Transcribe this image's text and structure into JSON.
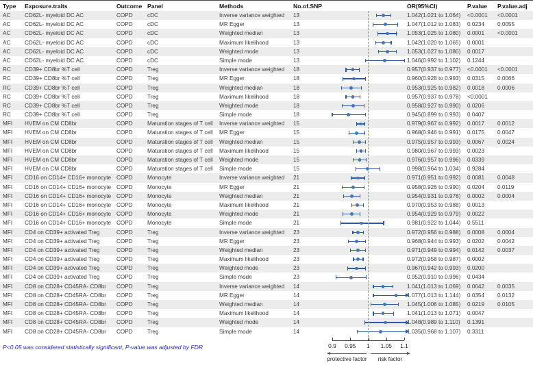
{
  "chart_data": {
    "type": "scatter",
    "subtype": "forest-plot",
    "title": "",
    "columns": {
      "type": "Type",
      "exposure": "Exposure.traits",
      "outcome": "Outcome",
      "panel": "Panel",
      "methods": "Methods",
      "snp": "No.of.SNP",
      "or": "OR(95%CI)",
      "p": "P.value",
      "padj": "P.value.adj"
    },
    "axis": {
      "min": 0.9,
      "max": 1.1,
      "ref": 1,
      "ticks": [
        "0.9",
        "0.95",
        "1",
        "1.05",
        "1.1"
      ],
      "left_label": "protective factor",
      "right_label": "risk factor"
    },
    "footnote": "P<0.05 was considered statistically significant, P-value was adjusted by FDR",
    "colors": {
      "ci_line": "#2d5a9e",
      "marker": "#4677b8",
      "ref_line": "#ef6a5f",
      "stripe": "#ececec",
      "footnote_blue": "#2424cc"
    },
    "rows": [
      {
        "type": "AC",
        "exposure": "CD62L- myeloid DC AC",
        "outcome": "COPD",
        "panel": "cDC",
        "method": "Inverse variance weighted",
        "snp": "13",
        "or": 1.042,
        "lo": 1.021,
        "hi": 1.064,
        "or_ci": "1.042(1.021 to 1.064)",
        "p": "<0.0001",
        "p_adj": "<0.0001"
      },
      {
        "type": "AC",
        "exposure": "CD62L- myeloid DC AC",
        "outcome": "COPD",
        "panel": "cDC",
        "method": "MR Egger",
        "snp": "13",
        "or": 1.047,
        "lo": 1.012,
        "hi": 1.083,
        "or_ci": "1.047(1.012 to 1.083)",
        "p": "0.0234",
        "p_adj": "0.0055"
      },
      {
        "type": "AC",
        "exposure": "CD62L- myeloid DC AC",
        "outcome": "COPD",
        "panel": "cDC",
        "method": "Weighted median",
        "snp": "13",
        "or": 1.053,
        "lo": 1.025,
        "hi": 1.08,
        "or_ci": "1.053(1.025 to 1.080)",
        "p": "0.0001",
        "p_adj": "<0.0001"
      },
      {
        "type": "AC",
        "exposure": "CD62L- myeloid DC AC",
        "outcome": "COPD",
        "panel": "cDC",
        "method": "Maximum likelihood",
        "snp": "13",
        "or": 1.042,
        "lo": 1.02,
        "hi": 1.065,
        "or_ci": "1.042(1.020 to 1.065)",
        "p": "0.0001",
        "p_adj": ""
      },
      {
        "type": "AC",
        "exposure": "CD62L- myeloid DC AC",
        "outcome": "COPD",
        "panel": "cDC",
        "method": "Weighted mode",
        "snp": "13",
        "or": 1.053,
        "lo": 1.027,
        "hi": 1.08,
        "or_ci": "1.053(1.027 to 1.080)",
        "p": "0.0017",
        "p_adj": ""
      },
      {
        "type": "AC",
        "exposure": "CD62L- myeloid DC AC",
        "outcome": "COPD",
        "panel": "cDC",
        "method": "Simple mode",
        "snp": "13",
        "or": 1.046,
        "lo": 0.992,
        "hi": 1.102,
        "or_ci": "1.046(0.992 to 1.102)",
        "p": "0.1244",
        "p_adj": ""
      },
      {
        "type": "RC",
        "exposure": "CD39+ CD8br %T cell",
        "outcome": "COPD",
        "panel": "Treg",
        "method": "Inverse variance weighted",
        "snp": "18",
        "or": 0.957,
        "lo": 0.937,
        "hi": 0.977,
        "or_ci": "0.957(0.937 to 0.977)",
        "p": "<0.0001",
        "p_adj": "<0.0001"
      },
      {
        "type": "RC",
        "exposure": "CD39+ CD8br %T cell",
        "outcome": "COPD",
        "panel": "Treg",
        "method": "MR Egger",
        "snp": "18",
        "or": 0.96,
        "lo": 0.928,
        "hi": 0.993,
        "or_ci": "0.960(0.928 to 0.993)",
        "p": "0.0315",
        "p_adj": "0.0066"
      },
      {
        "type": "RC",
        "exposure": "CD39+ CD8br %T cell",
        "outcome": "COPD",
        "panel": "Treg",
        "method": "Weighted median",
        "snp": "18",
        "or": 0.953,
        "lo": 0.925,
        "hi": 0.982,
        "or_ci": "0.953(0.925 to 0.982)",
        "p": "0.0018",
        "p_adj": "0.0006"
      },
      {
        "type": "RC",
        "exposure": "CD39+ CD8br %T cell",
        "outcome": "COPD",
        "panel": "Treg",
        "method": "Maximum likelihood",
        "snp": "18",
        "or": 0.957,
        "lo": 0.937,
        "hi": 0.978,
        "or_ci": "0.957(0.937 to 0.978)",
        "p": "<0.0001",
        "p_adj": ""
      },
      {
        "type": "RC",
        "exposure": "CD39+ CD8br %T cell",
        "outcome": "COPD",
        "panel": "Treg",
        "method": "Weighted mode",
        "snp": "18",
        "or": 0.958,
        "lo": 0.927,
        "hi": 0.99,
        "or_ci": "0.958(0.927 to 0.990)",
        "p": "0.0206",
        "p_adj": ""
      },
      {
        "type": "RC",
        "exposure": "CD39+ CD8br %T cell",
        "outcome": "COPD",
        "panel": "Treg",
        "method": "Simple mode",
        "snp": "18",
        "or": 0.945,
        "lo": 0.899,
        "hi": 0.993,
        "or_ci": "0.945(0.899 to 0.993)",
        "p": "0.0407",
        "p_adj": ""
      },
      {
        "type": "MFI",
        "exposure": "HVEM on CM CD8br",
        "outcome": "COPD",
        "panel": "Maturation stages of T cell",
        "method": "Inverse variance weighted",
        "snp": "15",
        "or": 0.979,
        "lo": 0.967,
        "hi": 0.992,
        "or_ci": "0.979(0.967 to 0.992)",
        "p": "0.0017",
        "p_adj": "0.0012"
      },
      {
        "type": "MFI",
        "exposure": "HVEM on CM CD8br",
        "outcome": "COPD",
        "panel": "Maturation stages of T cell",
        "method": "MR Egger",
        "snp": "15",
        "or": 0.968,
        "lo": 0.946,
        "hi": 0.991,
        "or_ci": "0.968(0.946 to 0.991)",
        "p": "0.0175",
        "p_adj": "0.0047"
      },
      {
        "type": "MFI",
        "exposure": "HVEM on CM CD8br",
        "outcome": "COPD",
        "panel": "Maturation stages of T cell",
        "method": "Weighted median",
        "snp": "15",
        "or": 0.975,
        "lo": 0.957,
        "hi": 0.993,
        "or_ci": "0.975(0.957 to 0.993)",
        "p": "0.0067",
        "p_adj": "0.0024"
      },
      {
        "type": "MFI",
        "exposure": "HVEM on CM CD8br",
        "outcome": "COPD",
        "panel": "Maturation stages of T cell",
        "method": "Maximum likelihood",
        "snp": "15",
        "or": 0.98,
        "lo": 0.967,
        "hi": 0.993,
        "or_ci": "0.980(0.967 to 0.993)",
        "p": "0.0023",
        "p_adj": ""
      },
      {
        "type": "MFI",
        "exposure": "HVEM on CM CD8br",
        "outcome": "COPD",
        "panel": "Maturation stages of T cell",
        "method": "Weighted mode",
        "snp": "15",
        "or": 0.976,
        "lo": 0.957,
        "hi": 0.996,
        "or_ci": "0.976(0.957 to 0.996)",
        "p": "0.0339",
        "p_adj": ""
      },
      {
        "type": "MFI",
        "exposure": "HVEM on CM CD8br",
        "outcome": "COPD",
        "panel": "Maturation stages of T cell",
        "method": "Simple mode",
        "snp": "15",
        "or": 0.998,
        "lo": 0.964,
        "hi": 1.034,
        "or_ci": "0.998(0.964 to 1.034)",
        "p": "0.9284",
        "p_adj": ""
      },
      {
        "type": "MFI",
        "exposure": "CD16 on CD14+ CD16+ monocyte",
        "outcome": "COPD",
        "panel": "Monocyte",
        "method": "Inverse variance weighted",
        "snp": "21",
        "or": 0.971,
        "lo": 0.951,
        "hi": 0.992,
        "or_ci": "0.971(0.951 to 0.992)",
        "p": "0.0081",
        "p_adj": "0.0048"
      },
      {
        "type": "MFI",
        "exposure": "CD16 on CD14+ CD16+ monocyte",
        "outcome": "COPD",
        "panel": "Monocyte",
        "method": "MR Egger",
        "snp": "21",
        "or": 0.958,
        "lo": 0.926,
        "hi": 0.99,
        "or_ci": "0.958(0.926 to 0.990)",
        "p": "0.0204",
        "p_adj": "0.0119"
      },
      {
        "type": "MFI",
        "exposure": "CD16 on CD14+ CD16+ monocyte",
        "outcome": "COPD",
        "panel": "Monocyte",
        "method": "Weighted median",
        "snp": "21",
        "or": 0.954,
        "lo": 0.931,
        "hi": 0.978,
        "or_ci": "0.954(0.931 to 0.978)",
        "p": "0.0002",
        "p_adj": "0.0004"
      },
      {
        "type": "MFI",
        "exposure": "CD16 on CD14+ CD16+ monocyte",
        "outcome": "COPD",
        "panel": "Monocyte",
        "method": "Maximum likelihood",
        "snp": "21",
        "or": 0.97,
        "lo": 0.953,
        "hi": 0.988,
        "or_ci": "0.970(0.953 to 0.988)",
        "p": "0.0013",
        "p_adj": ""
      },
      {
        "type": "MFI",
        "exposure": "CD16 on CD14+ CD16+ monocyte",
        "outcome": "COPD",
        "panel": "Monocyte",
        "method": "Weighted mode",
        "snp": "21",
        "or": 0.954,
        "lo": 0.929,
        "hi": 0.979,
        "or_ci": "0.954(0.929 to 0.979)",
        "p": "0.0022",
        "p_adj": ""
      },
      {
        "type": "MFI",
        "exposure": "CD16 on CD14+ CD16+ monocyte",
        "outcome": "COPD",
        "panel": "Monocyte",
        "method": "Simple mode",
        "snp": "21",
        "or": 0.981,
        "lo": 0.922,
        "hi": 1.044,
        "or_ci": "0.981(0.922 to 1.044)",
        "p": "0.5511",
        "p_adj": ""
      },
      {
        "type": "MFI",
        "exposure": "CD4 on CD39+ activated Treg",
        "outcome": "COPD",
        "panel": "Treg",
        "method": "Inverse variance weighted",
        "snp": "23",
        "or": 0.972,
        "lo": 0.956,
        "hi": 0.988,
        "or_ci": "0.972(0.956 to 0.988)",
        "p": "0.0008",
        "p_adj": "0.0004"
      },
      {
        "type": "MFI",
        "exposure": "CD4 on CD39+ activated Treg",
        "outcome": "COPD",
        "panel": "Treg",
        "method": "MR Egger",
        "snp": "23",
        "or": 0.968,
        "lo": 0.944,
        "hi": 0.993,
        "or_ci": "0.968(0.944 to 0.993)",
        "p": "0.0202",
        "p_adj": "0.0042"
      },
      {
        "type": "MFI",
        "exposure": "CD4 on CD39+ activated Treg",
        "outcome": "COPD",
        "panel": "Treg",
        "method": "Weighted median",
        "snp": "23",
        "or": 0.971,
        "lo": 0.949,
        "hi": 0.994,
        "or_ci": "0.971(0.949 to 0.994)",
        "p": "0.0142",
        "p_adj": "0.0037"
      },
      {
        "type": "MFI",
        "exposure": "CD4 on CD39+ activated Treg",
        "outcome": "COPD",
        "panel": "Treg",
        "method": "Maximum likelihood",
        "snp": "23",
        "or": 0.972,
        "lo": 0.958,
        "hi": 0.987,
        "or_ci": "0.972(0.958 to 0.987)",
        "p": "0.0002",
        "p_adj": ""
      },
      {
        "type": "MFI",
        "exposure": "CD4 on CD39+ activated Treg",
        "outcome": "COPD",
        "panel": "Treg",
        "method": "Weighted mode",
        "snp": "23",
        "or": 0.967,
        "lo": 0.942,
        "hi": 0.993,
        "or_ci": "0.967(0.942 to 0.993)",
        "p": "0.0200",
        "p_adj": ""
      },
      {
        "type": "MFI",
        "exposure": "CD4 on CD39+ activated Treg",
        "outcome": "COPD",
        "panel": "Treg",
        "method": "Simple mode",
        "snp": "23",
        "or": 0.952,
        "lo": 0.91,
        "hi": 0.996,
        "or_ci": "0.952(0.910 to 0.996)",
        "p": "0.0434",
        "p_adj": ""
      },
      {
        "type": "MFI",
        "exposure": "CD8 on CD28+ CD45RA- CD8br",
        "outcome": "COPD",
        "panel": "Treg",
        "method": "Inverse variance weighted",
        "snp": "14",
        "or": 1.041,
        "lo": 1.013,
        "hi": 1.069,
        "or_ci": "1.041(1.013 to 1.069)",
        "p": "0.0042",
        "p_adj": "0.0035"
      },
      {
        "type": "MFI",
        "exposure": "CD8 on CD28+ CD45RA- CD8br",
        "outcome": "COPD",
        "panel": "Treg",
        "method": "MR Egger",
        "snp": "14",
        "or": 1.077,
        "lo": 1.013,
        "hi": 1.144,
        "or_ci": "1.077(1.013 to 1.144)",
        "p": "0.0354",
        "p_adj": "0.0132"
      },
      {
        "type": "MFI",
        "exposure": "CD8 on CD28+ CD45RA- CD8br",
        "outcome": "COPD",
        "panel": "Treg",
        "method": "Weighted median",
        "snp": "14",
        "or": 1.045,
        "lo": 1.006,
        "hi": 1.085,
        "or_ci": "1.045(1.006 to 1.085)",
        "p": "0.0219",
        "p_adj": "0.0105"
      },
      {
        "type": "MFI",
        "exposure": "CD8 on CD28+ CD45RA- CD8br",
        "outcome": "COPD",
        "panel": "Treg",
        "method": "Maximum likelihood",
        "snp": "14",
        "or": 1.041,
        "lo": 1.013,
        "hi": 1.071,
        "or_ci": "1.041(1.013 to 1.071)",
        "p": "0.0047",
        "p_adj": ""
      },
      {
        "type": "MFI",
        "exposure": "CD8 on CD28+ CD45RA- CD8br",
        "outcome": "COPD",
        "panel": "Treg",
        "method": "Weighted mode",
        "snp": "14",
        "or": 1.048,
        "lo": 0.989,
        "hi": 1.11,
        "or_ci": "1.048(0.989 to 1.110)",
        "p": "0.1391",
        "p_adj": ""
      },
      {
        "type": "MFI",
        "exposure": "CD8 on CD28+ CD45RA- CD8br",
        "outcome": "COPD",
        "panel": "Treg",
        "method": "Simple mode",
        "snp": "14",
        "or": 1.035,
        "lo": 0.968,
        "hi": 1.107,
        "or_ci": "1.035(0.968 to 1.107)",
        "p": "0.3311",
        "p_adj": ""
      }
    ]
  }
}
